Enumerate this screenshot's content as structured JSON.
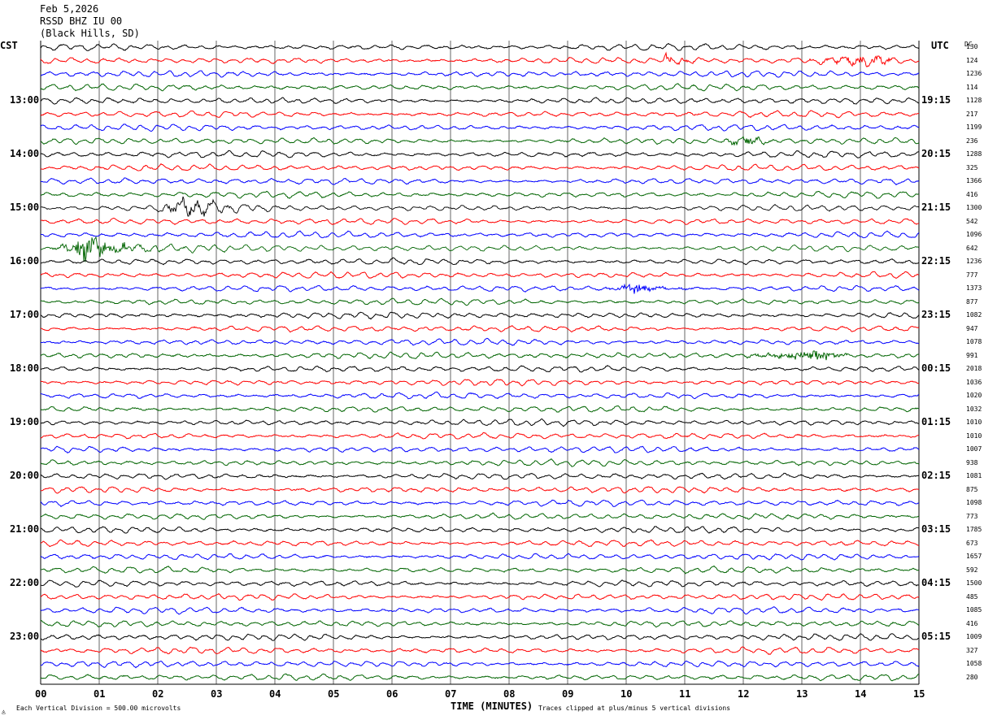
{
  "header": {
    "date": "Feb 5,2026",
    "station": "RSSD BHZ IU 00",
    "location": "(Black Hills, SD)"
  },
  "labels": {
    "left_zone": "CST",
    "right_zone": "UTC",
    "dc": "DC",
    "x_axis": "TIME (MINUTES)",
    "scale_note": "Each Vertical Division =  500.00 microvolts",
    "clip_note": "Traces clipped at plus/minus 5 vertical divisions"
  },
  "chart_data": {
    "type": "line",
    "title": "",
    "xlabel": "TIME (MINUTES)",
    "xlim": [
      0,
      15
    ],
    "x_ticks": [
      "00",
      "01",
      "02",
      "03",
      "04",
      "05",
      "06",
      "07",
      "08",
      "09",
      "10",
      "11",
      "12",
      "13",
      "14",
      "15"
    ],
    "trace_colors": [
      "#000000",
      "#ff0000",
      "#0000ff",
      "#006400"
    ],
    "traces_per_hour": 4,
    "trace_count": 48,
    "left_hour_labels": [
      "13:00",
      "14:00",
      "15:00",
      "16:00",
      "17:00",
      "18:00",
      "19:00",
      "20:00",
      "21:00",
      "22:00",
      "23:00"
    ],
    "left_hour_start_trace": 4,
    "right_hour_labels": [
      "19:15",
      "20:15",
      "21:15",
      "22:15",
      "23:15",
      "00:15",
      "01:15",
      "02:15",
      "03:15",
      "04:15",
      "05:15"
    ],
    "dc_offsets": [
      130,
      124,
      1236,
      114,
      1128,
      217,
      1199,
      236,
      1288,
      325,
      1366,
      416,
      1300,
      542,
      1096,
      642,
      1236,
      777,
      1373,
      877,
      1082,
      947,
      1078,
      991,
      2018,
      1036,
      1020,
      1032,
      1010,
      1010,
      1007,
      938,
      1081,
      875,
      1098,
      773,
      1785,
      673,
      1657,
      592,
      1500,
      485,
      1085,
      416,
      1009,
      327,
      1058,
      280
    ],
    "events": [
      {
        "trace": 12,
        "start_min": 1.9,
        "end_min": 4.2,
        "peak_min": 2.5,
        "amp_div": 2.3
      },
      {
        "trace": 15,
        "start_min": 0.15,
        "end_min": 3.2,
        "peak_min": 0.8,
        "amp_div": 4.0
      },
      {
        "trace": 1,
        "start_min": 10.6,
        "end_min": 11.6,
        "peak_min": 10.7,
        "amp_div": 1.2
      },
      {
        "trace": 18,
        "start_min": 9.6,
        "end_min": 11.2,
        "peak_min": 10.2,
        "amp_div": 1.1
      },
      {
        "trace": 23,
        "start_min": 11.8,
        "end_min": 14.2,
        "peak_min": 13.4,
        "amp_div": 1.1
      },
      {
        "trace": 7,
        "start_min": 11.5,
        "end_min": 12.8,
        "peak_min": 12.1,
        "amp_div": 0.9
      },
      {
        "trace": 1,
        "start_min": 12.8,
        "end_min": 14.8,
        "peak_min": 14.4,
        "amp_div": 0.8
      }
    ]
  }
}
